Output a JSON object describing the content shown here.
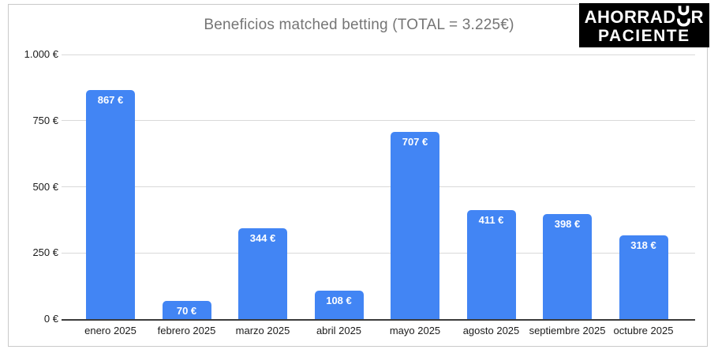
{
  "page": {
    "background": "#ffffff",
    "frame_border_color": "#c9c9c9"
  },
  "logo": {
    "line1_left": "AHORRAD",
    "line1_right": "R",
    "line2": "PACIENTE",
    "symbol": "stylized-o-icon",
    "bg_color": "#000000",
    "text_color": "#ffffff"
  },
  "chart_data": {
    "type": "bar",
    "title": "Beneficios matched betting (TOTAL = 3.225€)",
    "categories": [
      "enero 2025",
      "febrero 2025",
      "marzo 2025",
      "abril 2025",
      "mayo 2025",
      "agosto 2025",
      "septiembre 2025",
      "octubre 2025"
    ],
    "values": [
      867,
      70,
      344,
      108,
      707,
      411,
      398,
      318
    ],
    "bar_value_labels": [
      "867 €",
      "70 €",
      "344 €",
      "108 €",
      "707 €",
      "411 €",
      "398 €",
      "318 €"
    ],
    "y_ticks": [
      {
        "value": 0,
        "label": "0 €"
      },
      {
        "value": 250,
        "label": "250 €"
      },
      {
        "value": 500,
        "label": "500 €"
      },
      {
        "value": 750,
        "label": "750 €"
      },
      {
        "value": 1000,
        "label": "1.000 €"
      }
    ],
    "ylim": [
      0,
      1000
    ],
    "xlabel": "",
    "ylabel": "",
    "grid": true,
    "legend": "none",
    "colors": {
      "bar": "#4285f4",
      "bar_label": "#ffffff",
      "title": "#757575",
      "tick_label": "#1c1c1c",
      "gridline": "#d9d9d9",
      "axis_line": "#3c3c3c"
    }
  }
}
